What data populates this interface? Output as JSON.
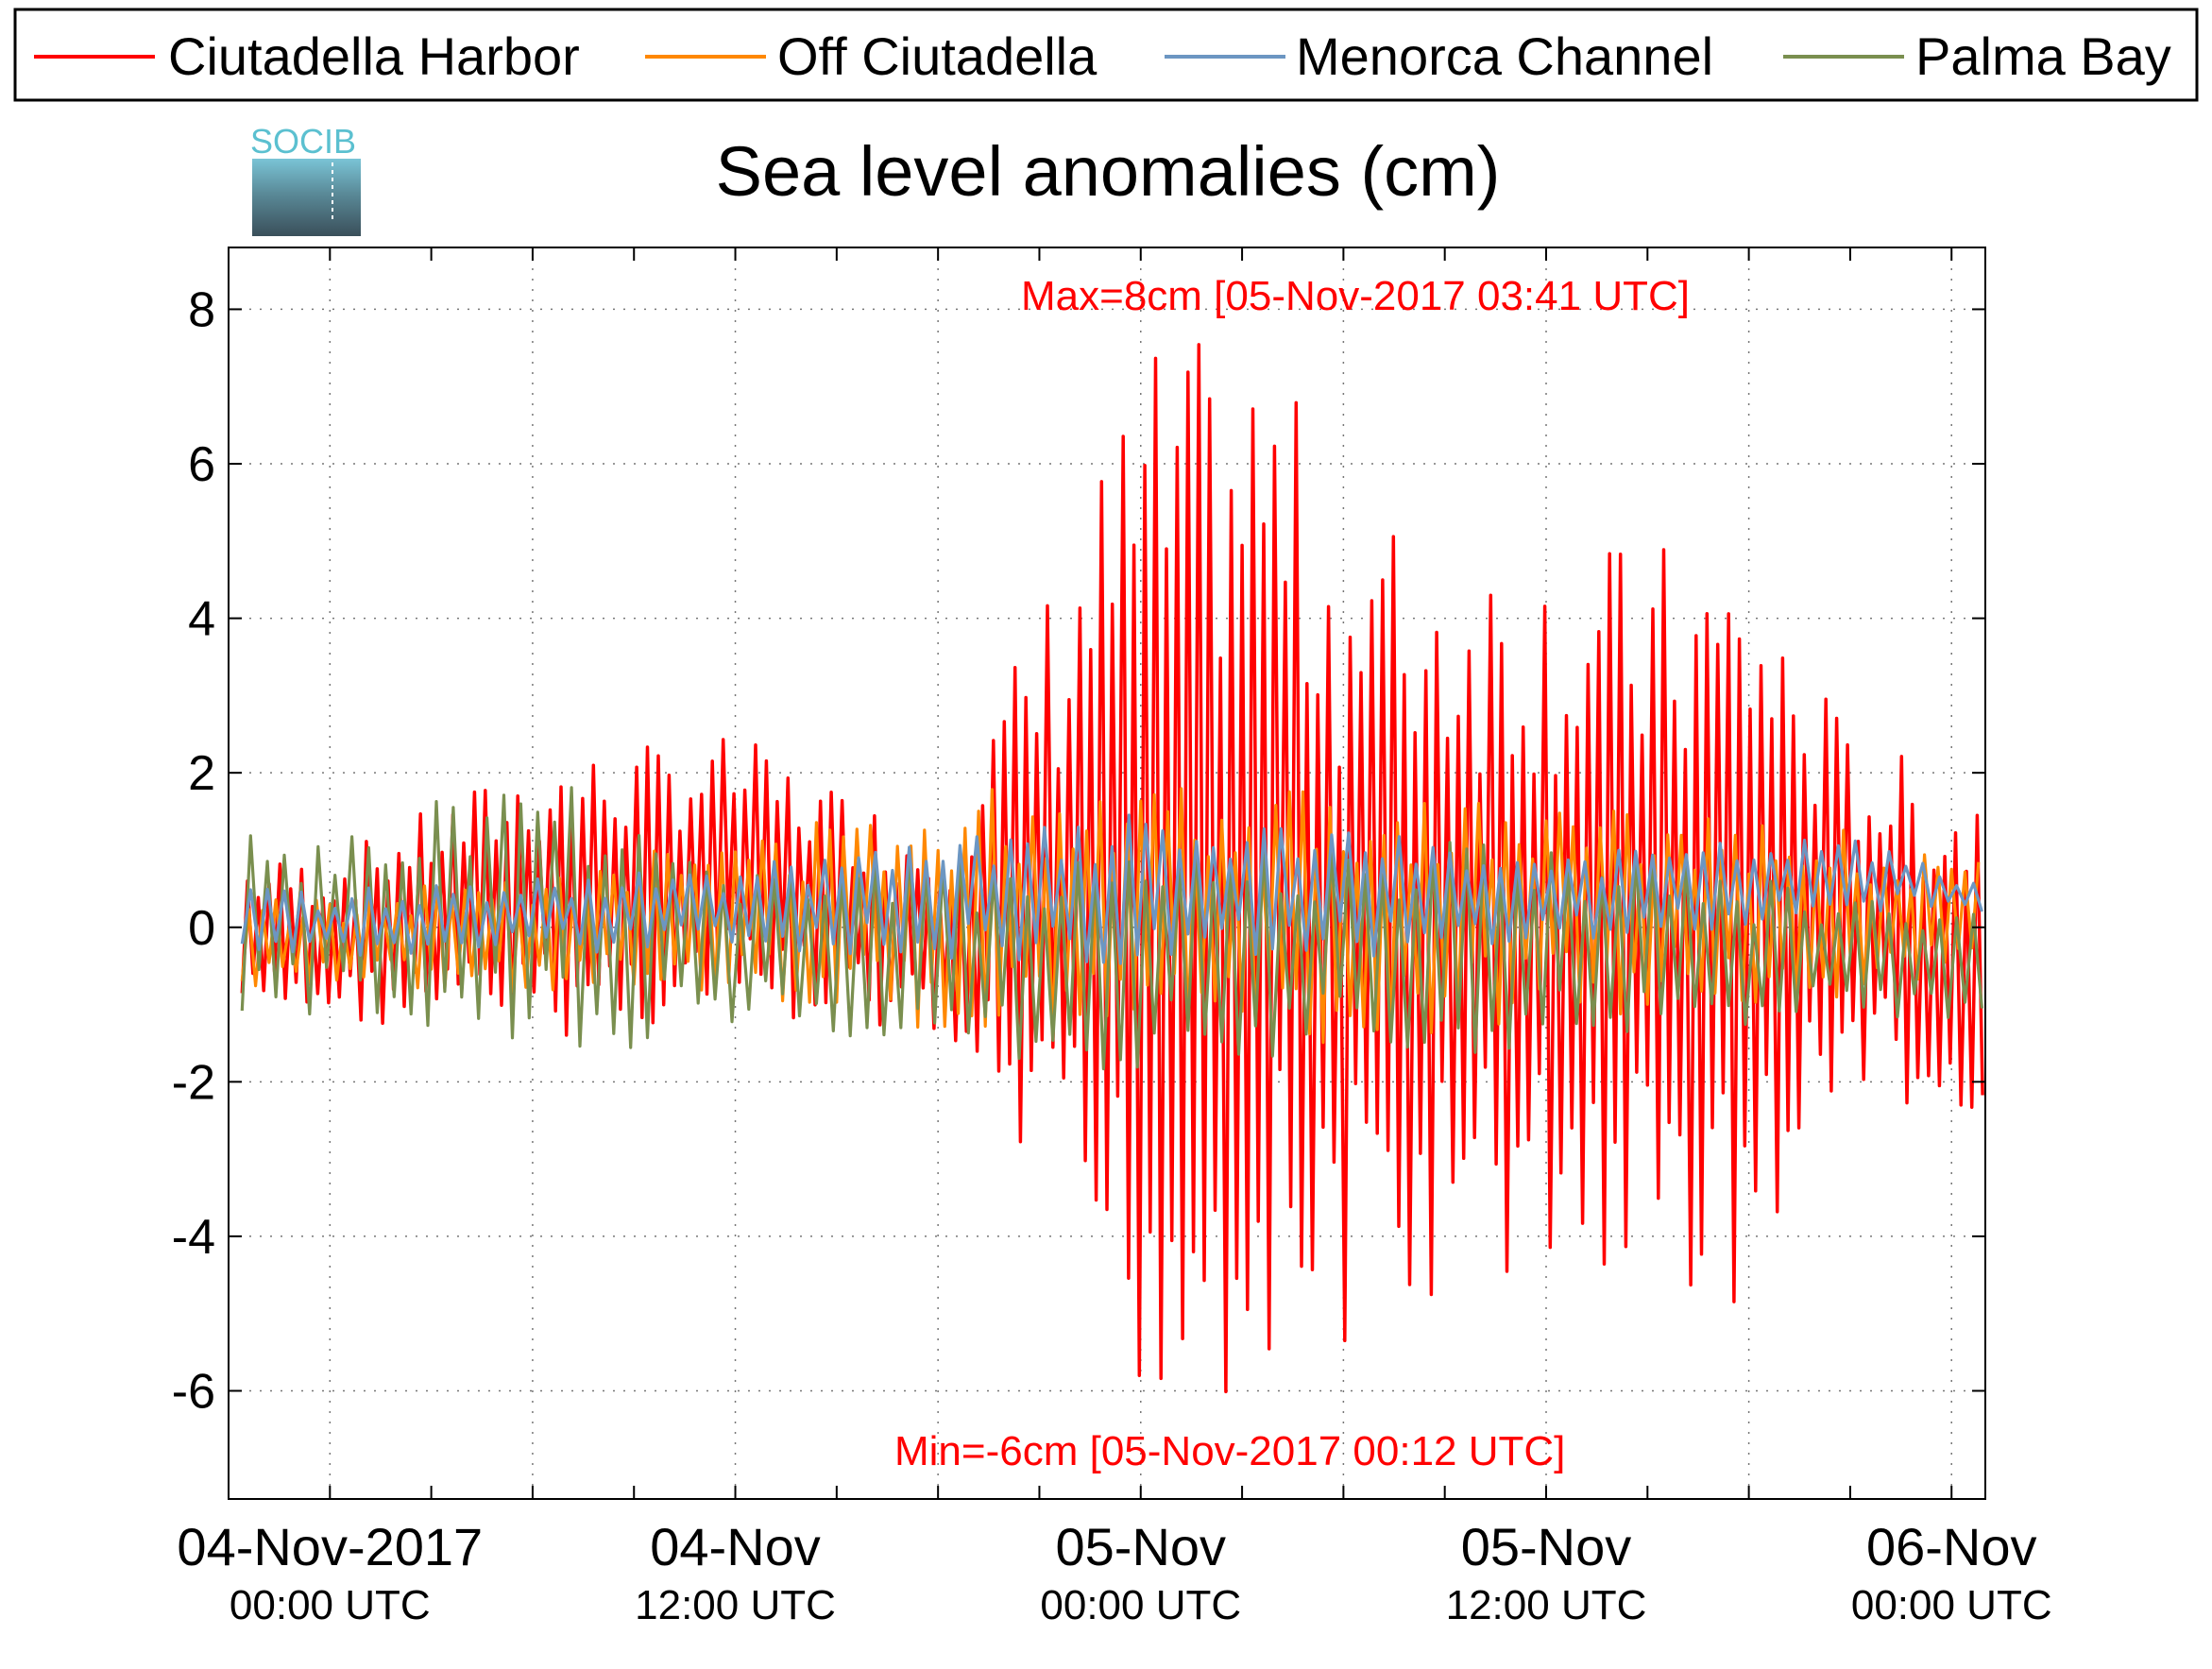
{
  "logo": {
    "text": "SOCIB"
  },
  "colors": {
    "ciutadella_harbor": "#ff0000",
    "off_ciutadella": "#ff8800",
    "menorca_channel": "#6c96c2",
    "palma_bay": "#7a8f4f",
    "grid": "#777777",
    "annotation": "#ff0000"
  },
  "chart_data": {
    "type": "line",
    "title": "Sea level anomalies (cm)",
    "xlabel": "",
    "ylabel": "",
    "ylim": [
      -7.4,
      8.8
    ],
    "yticks": [
      -6,
      -4,
      -2,
      0,
      2,
      4,
      6,
      8
    ],
    "ytick_labels": [
      "-6",
      "-4",
      "-2",
      "0",
      "2",
      "4",
      "6",
      "8"
    ],
    "xlim": [
      "03-Nov-2017 21:00 UTC",
      "06-Nov-2017 01:00 UTC"
    ],
    "x_minor_ticks_hours": [
      0,
      6,
      12,
      18,
      24,
      30,
      36,
      42,
      48
    ],
    "x_major_ticks": [
      {
        "hour": 0,
        "date": "04-Nov-2017",
        "time": "00:00 UTC"
      },
      {
        "hour": 12,
        "date": "04-Nov",
        "time": "12:00 UTC"
      },
      {
        "hour": 24,
        "date": "05-Nov",
        "time": "00:00 UTC"
      },
      {
        "hour": 36,
        "date": "05-Nov",
        "time": "12:00 UTC"
      },
      {
        "hour": 48,
        "date": "06-Nov",
        "time": "00:00 UTC"
      }
    ],
    "grid": true,
    "legend_position": "top",
    "annotations": [
      {
        "text": "Max=8cm [05-Nov-2017 03:41 UTC]"
      },
      {
        "text": "Min=-6cm [05-Nov-2017 00:12 UTC]"
      }
    ],
    "series": [
      {
        "name": "Ciutadella Harbor",
        "color": "#ff0000",
        "envelope": [
          {
            "time": "04-Nov-2017 00:00 UTC",
            "min": -1.2,
            "max": 0.9
          },
          {
            "time": "04-Nov-2017 06:00 UTC",
            "min": -1.5,
            "max": 2.2
          },
          {
            "time": "04-Nov-2017 12:00 UTC",
            "min": -1.2,
            "max": 2.5
          },
          {
            "time": "04-Nov-2017 18:00 UTC",
            "min": -1.5,
            "max": 1.2
          },
          {
            "time": "05-Nov-2017 00:12 UTC",
            "min": -6.4,
            "max": 7.5
          },
          {
            "time": "05-Nov-2017 03:41 UTC",
            "min": -6.0,
            "max": 7.7
          },
          {
            "time": "05-Nov-2017 06:00 UTC",
            "min": -5.5,
            "max": 5.5
          },
          {
            "time": "05-Nov-2017 12:00 UTC",
            "min": -4.6,
            "max": 5.0
          },
          {
            "time": "05-Nov-2017 18:00 UTC",
            "min": -5.0,
            "max": 5.0
          },
          {
            "time": "05-Nov-2017 21:00 UTC",
            "min": -2.0,
            "max": 2.5
          },
          {
            "time": "06-Nov-2017 00:00 UTC",
            "min": -3.0,
            "max": 2.0
          }
        ]
      },
      {
        "name": "Off Ciutadella",
        "color": "#ff8800",
        "envelope": [
          {
            "time": "04-Nov-2017 00:00 UTC",
            "min": -0.8,
            "max": 0.4
          },
          {
            "time": "04-Nov-2017 12:00 UTC",
            "min": -0.9,
            "max": 1.2
          },
          {
            "time": "05-Nov-2017 00:00 UTC",
            "min": -1.8,
            "max": 2.2
          },
          {
            "time": "05-Nov-2017 12:00 UTC",
            "min": -1.2,
            "max": 1.6
          },
          {
            "time": "05-Nov-2017 18:00 UTC",
            "min": -1.0,
            "max": 1.5
          },
          {
            "time": "06-Nov-2017 00:00 UTC",
            "min": -0.8,
            "max": 1.0
          }
        ]
      },
      {
        "name": "Menorca Channel",
        "color": "#6c96c2",
        "envelope": [
          {
            "time": "04-Nov-2017 00:00 UTC",
            "min": -0.4,
            "max": 0.5
          },
          {
            "time": "04-Nov-2017 12:00 UTC",
            "min": -0.3,
            "max": 0.8
          },
          {
            "time": "05-Nov-2017 00:00 UTC",
            "min": -0.5,
            "max": 1.5
          },
          {
            "time": "05-Nov-2017 12:00 UTC",
            "min": -0.3,
            "max": 1.0
          },
          {
            "time": "05-Nov-2017 21:00 UTC",
            "min": 0.2,
            "max": 1.2
          },
          {
            "time": "06-Nov-2017 00:00 UTC",
            "min": 0.2,
            "max": 0.7
          }
        ]
      },
      {
        "name": "Palma Bay",
        "color": "#7a8f4f",
        "envelope": [
          {
            "time": "04-Nov-2017 00:00 UTC",
            "min": -1.2,
            "max": 1.2
          },
          {
            "time": "04-Nov-2017 06:00 UTC",
            "min": -1.8,
            "max": 2.2
          },
          {
            "time": "04-Nov-2017 12:00 UTC",
            "min": -1.3,
            "max": 0.9
          },
          {
            "time": "05-Nov-2017 00:00 UTC",
            "min": -2.0,
            "max": 1.2
          },
          {
            "time": "05-Nov-2017 12:00 UTC",
            "min": -1.6,
            "max": 1.2
          },
          {
            "time": "06-Nov-2017 00:00 UTC",
            "min": -1.2,
            "max": 0.2
          }
        ]
      }
    ]
  }
}
